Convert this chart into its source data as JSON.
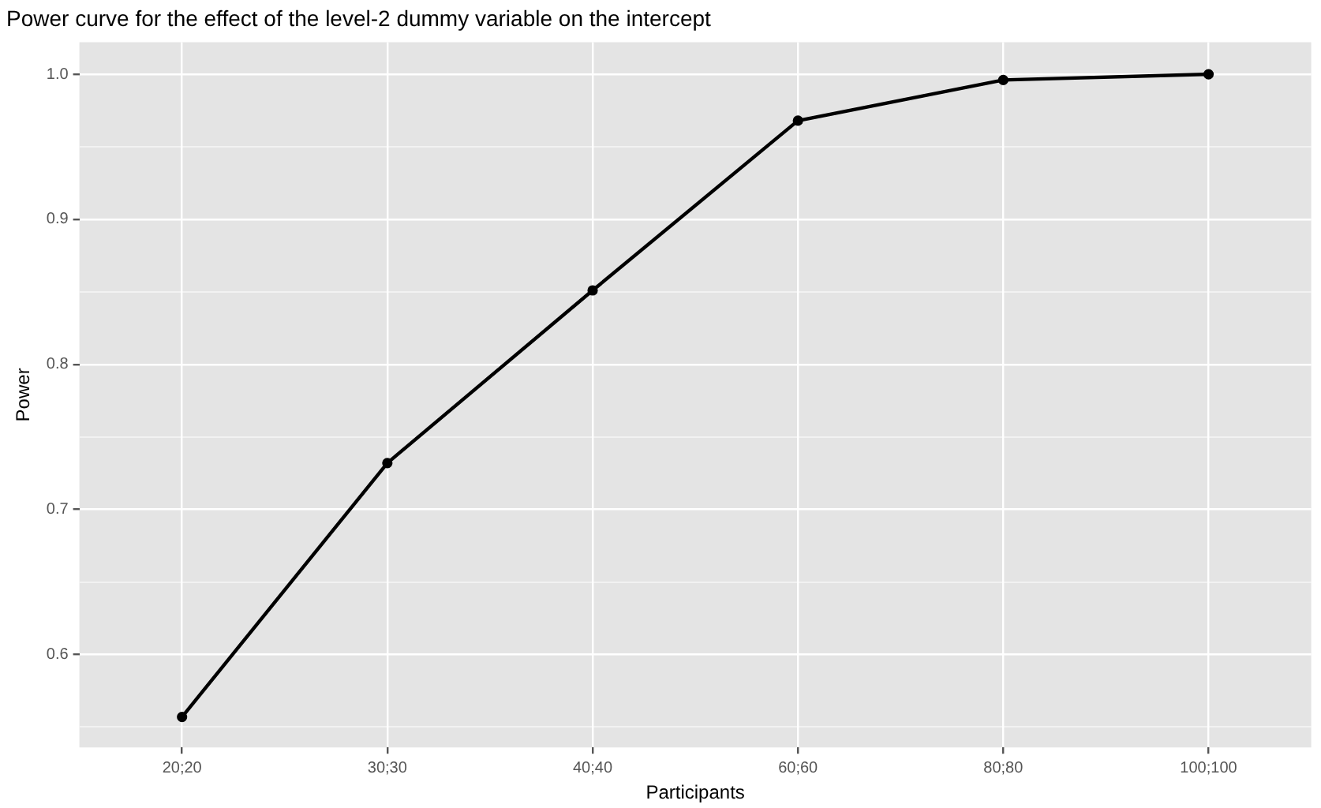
{
  "chart_data": {
    "type": "line",
    "title": "Power curve for the effect of the level-2 dummy variable on the intercept",
    "xlabel": "Participants",
    "ylabel": "Power",
    "categories": [
      "20;20",
      "30;30",
      "40;40",
      "60;60",
      "80;80",
      "100;100"
    ],
    "series": [
      {
        "color": "#000000",
        "values": [
          0.557,
          0.732,
          0.851,
          0.968,
          0.996,
          1.0
        ]
      }
    ],
    "ylim": [
      0.536,
      1.022
    ],
    "yticks": [
      {
        "value": 0.55,
        "label": null
      },
      {
        "value": 0.6,
        "label": "0.6"
      },
      {
        "value": 0.65,
        "label": null
      },
      {
        "value": 0.7,
        "label": "0.7"
      },
      {
        "value": 0.75,
        "label": null
      },
      {
        "value": 0.8,
        "label": "0.8"
      },
      {
        "value": 0.85,
        "label": null
      },
      {
        "value": 0.9,
        "label": "0.9"
      },
      {
        "value": 0.95,
        "label": null
      },
      {
        "value": 1.0,
        "label": "1.0"
      }
    ],
    "grid": true,
    "legend": false,
    "marker": "circle",
    "line_style": "solid"
  }
}
